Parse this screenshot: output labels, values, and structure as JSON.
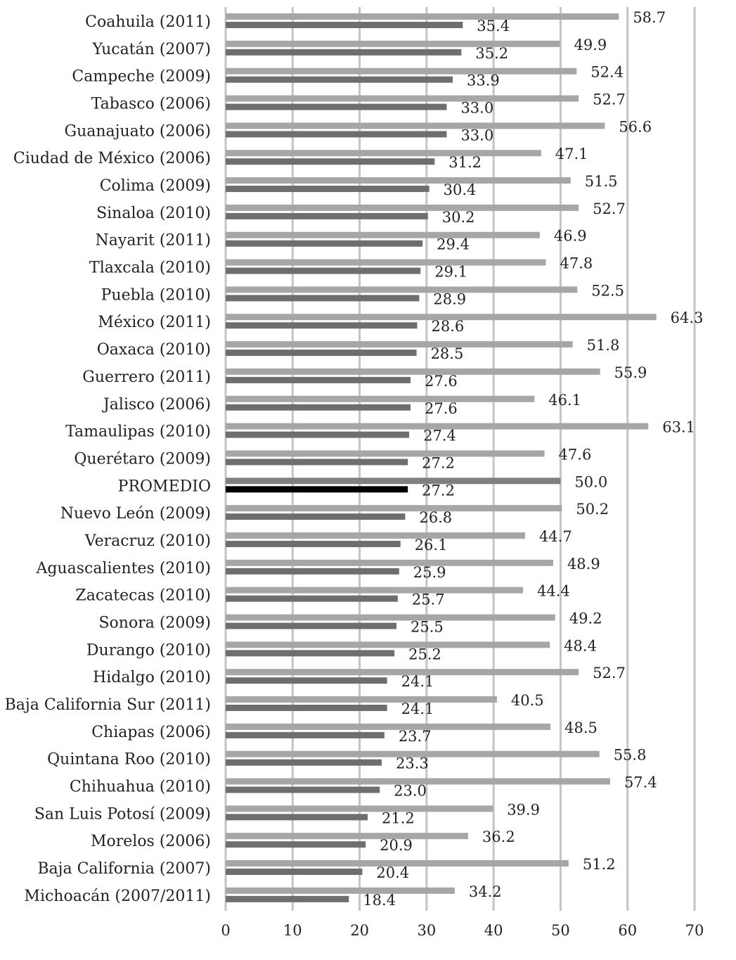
{
  "chart_data": {
    "type": "bar",
    "orientation": "horizontal",
    "title": "",
    "xlabel": "",
    "ylabel": "",
    "xlim": [
      0,
      70
    ],
    "x_ticks": [
      "0",
      "10",
      "20",
      "30",
      "40",
      "50",
      "60",
      "70"
    ],
    "grid": "vertical",
    "legend": "none",
    "categories": [
      "Coahuila (2011)",
      "Yucatán (2007)",
      "Campeche (2009)",
      "Tabasco (2006)",
      "Guanajuato (2006)",
      "Ciudad de México (2006)",
      "Colima (2009)",
      "Sinaloa (2010)",
      "Nayarit (2011)",
      "Tlaxcala (2010)",
      "Puebla (2010)",
      "México (2011)",
      "Oaxaca (2010)",
      "Guerrero (2011)",
      "Jalisco (2006)",
      "Tamaulipas (2010)",
      "Querétaro (2009)",
      "PROMEDIO",
      "Nuevo León (2009)",
      "Veracruz (2010)",
      "Aguascalientes (2010)",
      "Zacatecas (2010)",
      "Sonora (2009)",
      "Durango (2010)",
      "Hidalgo (2010)",
      "Baja California Sur (2011)",
      "Chiapas (2006)",
      "Quintana Roo (2010)",
      "Chihuahua (2010)",
      "San Luis Potosí (2009)",
      "Morelos (2006)",
      "Baja California (2007)",
      "Michoacán (2007/2011)"
    ],
    "series": [
      {
        "values": [
          "58.7",
          "49.9",
          "52.4",
          "52.7",
          "56.6",
          "47.1",
          "51.5",
          "52.7",
          "46.9",
          "47.8",
          "52.5",
          "64.3",
          "51.8",
          "55.9",
          "46.1",
          "63.1",
          "47.6",
          "50.0",
          "50.2",
          "44.7",
          "48.9",
          "44.4",
          "49.2",
          "48.4",
          "52.7",
          "40.5",
          "48.5",
          "55.8",
          "57.4",
          "39.9",
          "36.2",
          "51.2",
          "34.2"
        ],
        "color": "#a6a6a6",
        "highlight_color": "#808080"
      },
      {
        "values": [
          "35.4",
          "35.2",
          "33.9",
          "33.0",
          "33.0",
          "31.2",
          "30.4",
          "30.2",
          "29.4",
          "29.1",
          "28.9",
          "28.6",
          "28.5",
          "27.6",
          "27.6",
          "27.4",
          "27.2",
          "27.2",
          "26.8",
          "26.1",
          "25.9",
          "25.7",
          "25.5",
          "25.2",
          "24.1",
          "24.1",
          "23.7",
          "23.3",
          "23.0",
          "21.2",
          "20.9",
          "20.4",
          "18.4"
        ],
        "color": "#6e6e6e",
        "highlight_color": "#000000"
      }
    ],
    "highlight_category": "PROMEDIO"
  }
}
